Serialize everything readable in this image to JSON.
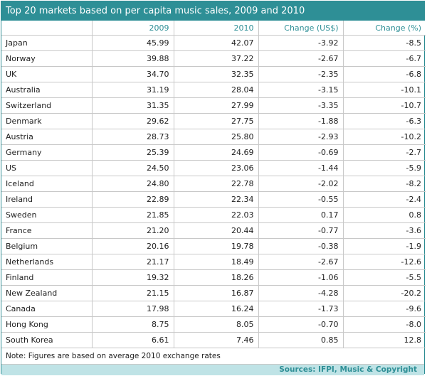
{
  "chart_data": {
    "type": "table",
    "title": "Top 20 markets based on per capita music sales, 2009 and 2010",
    "columns": [
      "",
      "2009",
      "2010",
      "Change (US$)",
      "Change (%)"
    ],
    "rows": [
      [
        "Japan",
        "45.99",
        "42.07",
        "-3.92",
        "-8.5"
      ],
      [
        "Norway",
        "39.88",
        "37.22",
        "-2.67",
        "-6.7"
      ],
      [
        "UK",
        "34.70",
        "32.35",
        "-2.35",
        "-6.8"
      ],
      [
        "Australia",
        "31.19",
        "28.04",
        "-3.15",
        "-10.1"
      ],
      [
        "Switzerland",
        "31.35",
        "27.99",
        "-3.35",
        "-10.7"
      ],
      [
        "Denmark",
        "29.62",
        "27.75",
        "-1.88",
        "-6.3"
      ],
      [
        "Austria",
        "28.73",
        "25.80",
        "-2.93",
        "-10.2"
      ],
      [
        "Germany",
        "25.39",
        "24.69",
        "-0.69",
        "-2.7"
      ],
      [
        "US",
        "24.50",
        "23.06",
        "-1.44",
        "-5.9"
      ],
      [
        "Iceland",
        "24.80",
        "22.78",
        "-2.02",
        "-8.2"
      ],
      [
        "Ireland",
        "22.89",
        "22.34",
        "-0.55",
        "-2.4"
      ],
      [
        "Sweden",
        "21.85",
        "22.03",
        "0.17",
        "0.8"
      ],
      [
        "France",
        "21.20",
        "20.44",
        "-0.77",
        "-3.6"
      ],
      [
        "Belgium",
        "20.16",
        "19.78",
        "-0.38",
        "-1.9"
      ],
      [
        "Netherlands",
        "21.17",
        "18.49",
        "-2.67",
        "-12.6"
      ],
      [
        "Finland",
        "19.32",
        "18.26",
        "-1.06",
        "-5.5"
      ],
      [
        "New Zealand",
        "21.15",
        "16.87",
        "-4.28",
        "-20.2"
      ],
      [
        "Canada",
        "17.98",
        "16.24",
        "-1.73",
        "-9.6"
      ],
      [
        "Hong Kong",
        "8.75",
        "8.05",
        "-0.70",
        "-8.0"
      ],
      [
        "South Korea",
        "6.61",
        "7.46",
        "0.85",
        "12.8"
      ]
    ],
    "note": "Note: Figures are based on average 2010 exchange rates",
    "source": "Sources: IFPI, Music & Copyright"
  },
  "colors": {
    "accent": "#2e8f96",
    "source_bar": "#bfe3e6",
    "grid": "#c8c8c8"
  }
}
